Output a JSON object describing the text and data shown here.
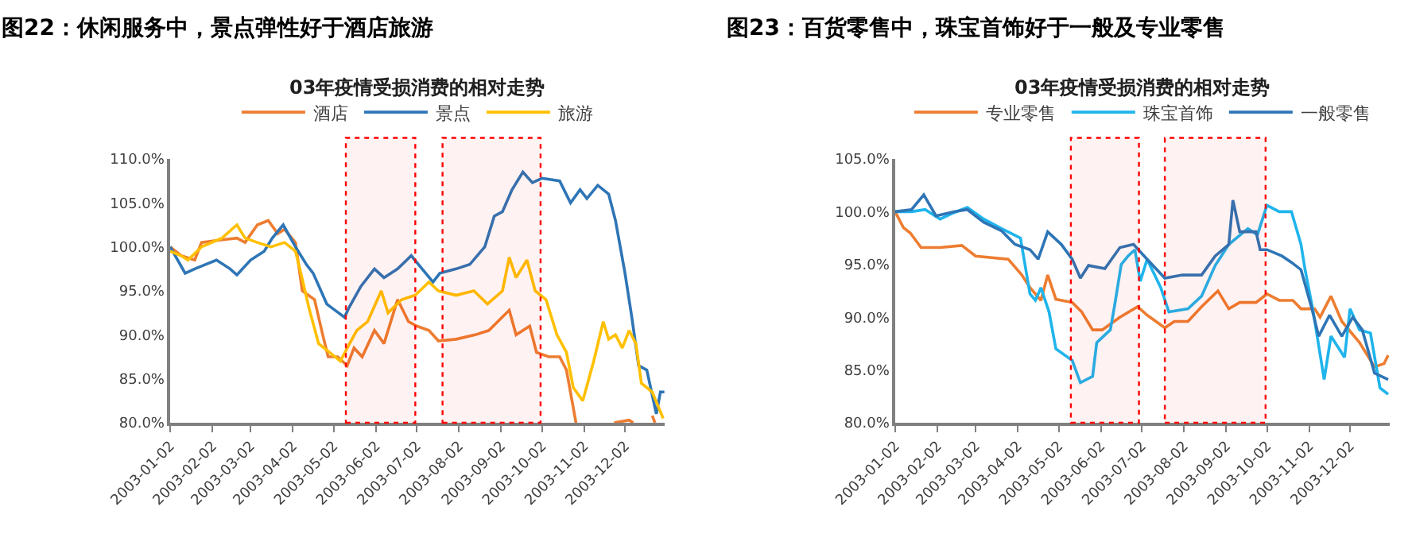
{
  "chart_data": [
    {
      "type": "line",
      "title": "图22：休闲服务中，景点弹性好于酒店旅游",
      "subtitle": "03年疫情受损消费的相对走势",
      "legend": "top",
      "marker": "none",
      "line_style": "solid",
      "xlim": [
        "2003-01-02",
        "2003-12-31"
      ],
      "xticks": [
        "2003-01-02",
        "2003-02-02",
        "2003-03-02",
        "2003-04-02",
        "2003-05-02",
        "2003-06-02",
        "2003-07-02",
        "2003-08-02",
        "2003-09-02",
        "2003-10-02",
        "2003-11-02",
        "2003-12-02"
      ],
      "ylim": [
        80,
        110
      ],
      "yticks": [
        {
          "value": 80,
          "label": "80.0%"
        },
        {
          "value": 85,
          "label": "85.0%"
        },
        {
          "value": 90,
          "label": "90.0%"
        },
        {
          "value": 95,
          "label": "95.0%"
        },
        {
          "value": 100,
          "label": "100.0%"
        },
        {
          "value": 105,
          "label": "105.0%"
        },
        {
          "value": 110,
          "label": "110.0%"
        }
      ],
      "bands": [
        {
          "axis": "x",
          "from": "2003-05-11",
          "to": "2003-07-01",
          "color": "#ff0000"
        },
        {
          "axis": "x",
          "from": "2003-07-21",
          "to": "2003-10-01",
          "color": "#ff0000"
        }
      ],
      "series": [
        {
          "name": "酒店",
          "color": "#ed7d31",
          "x": [
            "2003-01-02",
            "2003-01-10",
            "2003-01-20",
            "2003-01-25",
            "2003-02-09",
            "2003-02-20",
            "2003-02-26",
            "2003-03-07",
            "2003-03-15",
            "2003-03-22",
            "2003-03-27",
            "2003-04-04",
            "2003-04-09",
            "2003-04-18",
            "2003-04-24",
            "2003-04-28",
            "2003-05-05",
            "2003-05-12",
            "2003-05-17",
            "2003-05-23",
            "2003-06-01",
            "2003-06-08",
            "2003-06-18",
            "2003-06-26",
            "2003-07-02",
            "2003-07-11",
            "2003-07-18",
            "2003-07-31",
            "2003-08-14",
            "2003-08-24",
            "2003-09-08",
            "2003-09-13",
            "2003-09-23",
            "2003-09-28",
            "2003-10-07",
            "2003-10-15",
            "2003-10-20",
            "2003-10-27",
            "2003-11-10",
            "2003-11-24",
            "2003-12-05",
            "2003-12-08",
            "2003-12-14",
            "2003-12-22",
            "2003-12-24"
          ],
          "values": [
            100,
            99,
            98.5,
            100.5,
            100.8,
            101,
            100.5,
            102.5,
            103,
            101.5,
            102,
            100.5,
            95,
            94,
            90,
            87.5,
            87.5,
            86.5,
            88.5,
            87.5,
            90.5,
            89,
            94,
            91.5,
            91,
            90.5,
            89.3,
            89.5,
            90,
            90.5,
            92.8,
            90,
            91,
            88,
            87.5,
            87.5,
            86,
            80,
            null,
            80,
            80.3,
            80,
            null,
            80.8,
            80
          ]
        },
        {
          "name": "景点",
          "color": "#2e75b6",
          "x": [
            "2003-01-02",
            "2003-01-13",
            "2003-01-20",
            "2003-02-05",
            "2003-02-15",
            "2003-02-20",
            "2003-03-02",
            "2003-03-12",
            "2003-03-18",
            "2003-03-26",
            "2003-04-04",
            "2003-04-12",
            "2003-04-17",
            "2003-04-27",
            "2003-05-03",
            "2003-05-10",
            "2003-05-13",
            "2003-05-22",
            "2003-06-01",
            "2003-06-08",
            "2003-06-18",
            "2003-06-28",
            "2003-07-06",
            "2003-07-14",
            "2003-07-19",
            "2003-07-31",
            "2003-08-10",
            "2003-08-21",
            "2003-08-28",
            "2003-09-03",
            "2003-09-10",
            "2003-09-18",
            "2003-09-25",
            "2003-10-02",
            "2003-10-15",
            "2003-10-23",
            "2003-10-30",
            "2003-11-04",
            "2003-11-12",
            "2003-11-20",
            "2003-11-25",
            "2003-12-02",
            "2003-12-07",
            "2003-12-12",
            "2003-12-18",
            "2003-12-25",
            "2003-12-28",
            "2003-12-31"
          ],
          "values": [
            100,
            97,
            97.5,
            98.5,
            97.5,
            96.8,
            98.5,
            99.5,
            101,
            102.5,
            100,
            98,
            97,
            93.5,
            92.8,
            92,
            93,
            95.5,
            97.5,
            96.5,
            97.5,
            99,
            97.5,
            96,
            97,
            97.5,
            98,
            100,
            103.5,
            104,
            106.5,
            108.5,
            107.3,
            107.8,
            107.5,
            105,
            106.5,
            105.5,
            107,
            106,
            103,
            97,
            92,
            86.5,
            86,
            81,
            83.5,
            83.5
          ]
        },
        {
          "name": "旅游",
          "color": "#ffc000",
          "x": [
            "2003-01-02",
            "2003-01-10",
            "2003-01-15",
            "2003-01-25",
            "2003-02-09",
            "2003-02-20",
            "2003-02-26",
            "2003-03-07",
            "2003-03-17",
            "2003-03-27",
            "2003-04-04",
            "2003-04-08",
            "2003-04-14",
            "2003-04-21",
            "2003-04-29",
            "2003-05-07",
            "2003-05-12",
            "2003-05-19",
            "2003-05-27",
            "2003-06-06",
            "2003-06-11",
            "2003-06-21",
            "2003-07-01",
            "2003-07-11",
            "2003-07-18",
            "2003-07-31",
            "2003-08-13",
            "2003-08-23",
            "2003-09-03",
            "2003-09-08",
            "2003-09-13",
            "2003-09-21",
            "2003-09-27",
            "2003-10-05",
            "2003-10-13",
            "2003-10-20",
            "2003-10-25",
            "2003-11-01",
            "2003-11-09",
            "2003-11-16",
            "2003-11-20",
            "2003-11-25",
            "2003-11-30",
            "2003-12-05",
            "2003-12-10",
            "2003-12-14",
            "2003-12-22",
            "2003-12-30"
          ],
          "values": [
            99.5,
            99,
            98.5,
            100,
            101,
            102.5,
            101,
            100.5,
            100,
            100.5,
            99.5,
            97,
            93,
            89,
            88,
            87,
            88.5,
            90.5,
            91.5,
            95,
            92.5,
            94,
            94.5,
            96,
            95,
            94.5,
            95,
            93.5,
            95,
            98.8,
            96.5,
            98.5,
            95,
            94,
            90,
            88,
            84,
            82.5,
            87,
            91.5,
            89.5,
            90,
            88.5,
            90.5,
            89,
            84.5,
            83.5,
            80.5
          ]
        }
      ]
    },
    {
      "type": "line",
      "title": "图23：百货零售中，珠宝首饰好于一般及专业零售",
      "subtitle": "03年疫情受损消费的相对走势",
      "legend": "top",
      "marker": "none",
      "line_style": "solid",
      "xlim": [
        "2003-01-02",
        "2003-12-31"
      ],
      "xticks": [
        "2003-01-02",
        "2003-02-02",
        "2003-03-02",
        "2003-04-02",
        "2003-05-02",
        "2003-06-02",
        "2003-07-02",
        "2003-08-02",
        "2003-09-02",
        "2003-10-02",
        "2003-11-02",
        "2003-12-02"
      ],
      "ylim": [
        80,
        105
      ],
      "yticks": [
        {
          "value": 80,
          "label": "80.0%"
        },
        {
          "value": 85,
          "label": "85.0%"
        },
        {
          "value": 90,
          "label": "90.0%"
        },
        {
          "value": 95,
          "label": "95.0%"
        },
        {
          "value": 100,
          "label": "100.0%"
        },
        {
          "value": 105,
          "label": "105.0%"
        }
      ],
      "bands": [
        {
          "axis": "x",
          "from": "2003-05-11",
          "to": "2003-06-30",
          "color": "#ff0000"
        },
        {
          "axis": "x",
          "from": "2003-07-19",
          "to": "2003-10-01",
          "color": "#ff0000"
        }
      ],
      "series": [
        {
          "name": "专业零售",
          "color": "#ed7d31",
          "x": [
            "2003-01-02",
            "2003-01-08",
            "2003-01-13",
            "2003-01-21",
            "2003-02-04",
            "2003-02-20",
            "2003-03-02",
            "2003-03-26",
            "2003-04-05",
            "2003-04-11",
            "2003-04-19",
            "2003-04-24",
            "2003-04-30",
            "2003-05-12",
            "2003-05-19",
            "2003-05-27",
            "2003-06-03",
            "2003-06-16",
            "2003-06-29",
            "2003-07-06",
            "2003-07-19",
            "2003-07-26",
            "2003-08-05",
            "2003-08-15",
            "2003-08-27",
            "2003-09-04",
            "2003-09-12",
            "2003-09-24",
            "2003-10-02",
            "2003-10-11",
            "2003-10-21",
            "2003-10-27",
            "2003-11-06",
            "2003-11-10",
            "2003-11-18",
            "2003-11-26",
            "2003-12-09",
            "2003-12-20",
            "2003-12-27",
            "2003-12-30"
          ],
          "values": [
            100,
            98.5,
            98,
            96.6,
            96.6,
            96.8,
            95.8,
            95.5,
            94,
            92.8,
            91.6,
            94,
            91.7,
            91.4,
            90.5,
            88.8,
            88.8,
            90,
            91,
            90.2,
            89,
            89.6,
            89.6,
            91,
            92.5,
            90.8,
            91.4,
            91.4,
            92.2,
            91.6,
            91.6,
            90.8,
            90.8,
            90,
            92,
            89.6,
            87.6,
            85.3,
            85.6,
            86.4
          ]
        },
        {
          "name": "珠宝首饰",
          "color": "#1fb4ec",
          "x": [
            "2003-01-02",
            "2003-01-14",
            "2003-01-24",
            "2003-02-04",
            "2003-02-14",
            "2003-02-24",
            "2003-03-08",
            "2003-03-21",
            "2003-04-04",
            "2003-04-11",
            "2003-04-15",
            "2003-04-19",
            "2003-04-25",
            "2003-04-30",
            "2003-05-12",
            "2003-05-18",
            "2003-05-27",
            "2003-05-30",
            "2003-06-09",
            "2003-06-12",
            "2003-06-17",
            "2003-06-22",
            "2003-06-27",
            "2003-07-01",
            "2003-07-06",
            "2003-07-16",
            "2003-07-22",
            "2003-08-05",
            "2003-08-15",
            "2003-08-25",
            "2003-09-04",
            "2003-09-18",
            "2003-09-25",
            "2003-10-02",
            "2003-10-11",
            "2003-10-20",
            "2003-10-27",
            "2003-10-30",
            "2003-11-05",
            "2003-11-13",
            "2003-11-18",
            "2003-11-28",
            "2003-12-02",
            "2003-12-09",
            "2003-12-17",
            "2003-12-24",
            "2003-12-30"
          ],
          "values": [
            100,
            100,
            100.2,
            99.3,
            99.9,
            100.4,
            99.3,
            98.4,
            97.5,
            92.2,
            91.6,
            92.8,
            90.5,
            87,
            85.9,
            83.8,
            84.4,
            87.6,
            88.8,
            91,
            95,
            95.8,
            96.4,
            93.4,
            95.5,
            92.8,
            90.5,
            90.8,
            92,
            94.9,
            96.9,
            98.4,
            97.8,
            100.6,
            100,
            100,
            96.9,
            94.5,
            90.5,
            84.1,
            88.2,
            86.2,
            90.8,
            88.8,
            88.5,
            83.3,
            82.7
          ]
        },
        {
          "name": "一般零售",
          "color": "#2e75b6",
          "x": [
            "2003-01-02",
            "2003-01-14",
            "2003-01-23",
            "2003-02-01",
            "2003-02-14",
            "2003-02-24",
            "2003-03-08",
            "2003-03-21",
            "2003-03-31",
            "2003-04-11",
            "2003-04-17",
            "2003-04-24",
            "2003-05-04",
            "2003-05-12",
            "2003-05-18",
            "2003-05-24",
            "2003-06-05",
            "2003-06-16",
            "2003-06-26",
            "2003-07-06",
            "2003-07-19",
            "2003-08-01",
            "2003-08-15",
            "2003-08-25",
            "2003-09-04",
            "2003-09-07",
            "2003-09-12",
            "2003-09-24",
            "2003-09-27",
            "2003-10-02",
            "2003-10-13",
            "2003-10-20",
            "2003-10-27",
            "2003-11-04",
            "2003-11-09",
            "2003-11-17",
            "2003-11-26",
            "2003-12-04",
            "2003-12-11",
            "2003-12-20",
            "2003-12-30"
          ],
          "values": [
            100,
            100.2,
            101.6,
            99.6,
            100,
            100.2,
            99,
            98.2,
            96.9,
            96.4,
            95.5,
            98.1,
            96.9,
            95.5,
            93.7,
            94.9,
            94.6,
            96.6,
            96.9,
            95.5,
            93.7,
            94,
            94,
            95.8,
            96.9,
            101.1,
            98.1,
            98.1,
            96.4,
            96.4,
            95.8,
            95.2,
            94.5,
            90.8,
            88.2,
            90.2,
            88.2,
            90,
            88.8,
            84.7,
            84.1
          ]
        }
      ]
    }
  ]
}
